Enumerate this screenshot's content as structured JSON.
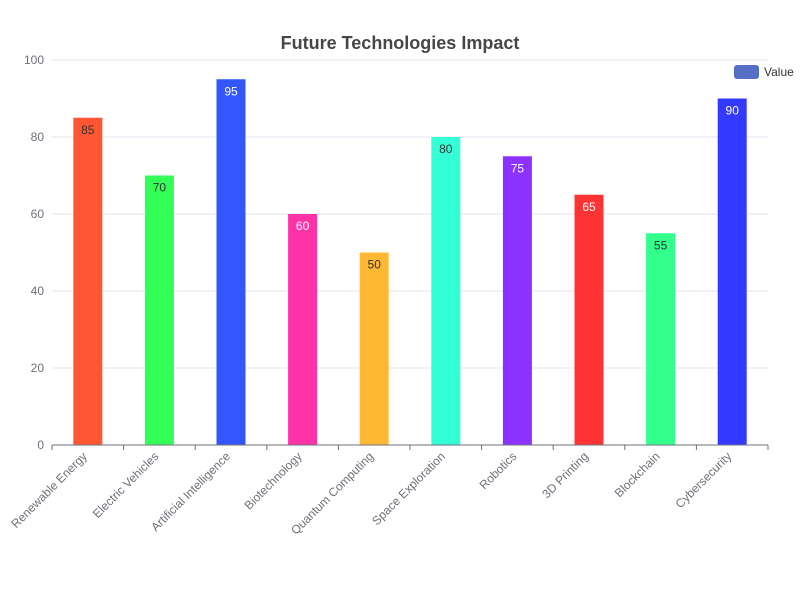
{
  "chart_data": {
    "type": "bar",
    "title": "Future Technologies Impact",
    "xlabel": "",
    "ylabel": "",
    "ylim": [
      0,
      100
    ],
    "yticks": [
      0,
      20,
      40,
      60,
      80,
      100
    ],
    "grid": true,
    "legend": {
      "placement": "top-right",
      "label": "Value",
      "color": "#5470c6"
    },
    "categories": [
      "Renewable Energy",
      "Electric Vehicles",
      "Artificial Intelligence",
      "Biotechnology",
      "Quantum Computing",
      "Space Exploration",
      "Robotics",
      "3D Printing",
      "Blockchain",
      "Cybersecurity"
    ],
    "series": [
      {
        "name": "Value",
        "values": [
          85,
          70,
          95,
          60,
          50,
          80,
          75,
          65,
          55,
          90
        ],
        "colors": [
          "#ff5733",
          "#33ff57",
          "#3357ff",
          "#ff33a8",
          "#ffb833",
          "#33ffd7",
          "#8d33ff",
          "#ff3333",
          "#33ff8d",
          "#3339ff"
        ],
        "label_colors": [
          "#333333",
          "#333333",
          "#ffffff",
          "#ffffff",
          "#333333",
          "#333333",
          "#ffffff",
          "#ffffff",
          "#333333",
          "#ffffff"
        ]
      }
    ]
  }
}
